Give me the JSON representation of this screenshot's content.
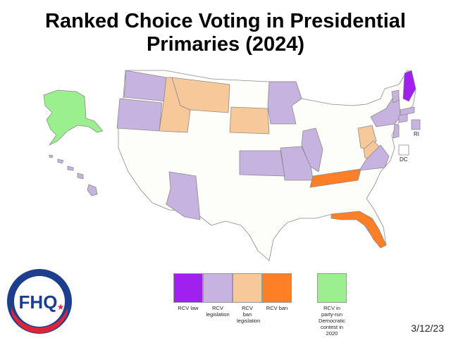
{
  "title": "Ranked Choice Voting in Presidential Primaries (2024)",
  "colors": {
    "rcv_law": "#a020f0",
    "rcv_legislation": "#c7b3e0",
    "rcv_ban_legislation": "#f7c99a",
    "rcv_ban": "#ff7f27",
    "rcv_party_run_2020": "#9bef8f",
    "none": "#fdfdf9"
  },
  "map_labels": {
    "ri": "RI",
    "dc": "DC"
  },
  "legend": [
    {
      "key": "rcv_law",
      "label": "RCV law"
    },
    {
      "key": "rcv_legislation",
      "label": "RCV legislation"
    },
    {
      "key": "rcv_ban_legislation",
      "label": "RCV ban legislation"
    },
    {
      "key": "rcv_ban",
      "label": "RCV ban"
    },
    {
      "key": "rcv_party_run_2020",
      "label": "RCV in party-run Democratic contest in 2020"
    }
  ],
  "states": {
    "ME": "rcv_law",
    "AK": "rcv_party_run_2020",
    "HI": "rcv_legislation",
    "WA": "rcv_legislation",
    "OR": "rcv_legislation",
    "MN": "rcv_legislation",
    "IL": "rcv_legislation",
    "MO": "rcv_legislation",
    "KS": "rcv_legislation",
    "AZ": "rcv_legislation",
    "NY": "rcv_legislation",
    "VT": "rcv_legislation",
    "MA": "rcv_legislation",
    "NJ": "rcv_legislation",
    "VA": "rcv_legislation",
    "CT": "rcv_legislation",
    "RI": "rcv_legislation",
    "MT": "rcv_ban_legislation",
    "ID": "rcv_ban_legislation",
    "SD": "rcv_ban_legislation",
    "WV": "rcv_ban_legislation",
    "OH": "rcv_ban_legislation",
    "TN": "rcv_ban",
    "FL": "rcv_ban"
  },
  "logo_text": "FHQ",
  "date": "3/12/23"
}
